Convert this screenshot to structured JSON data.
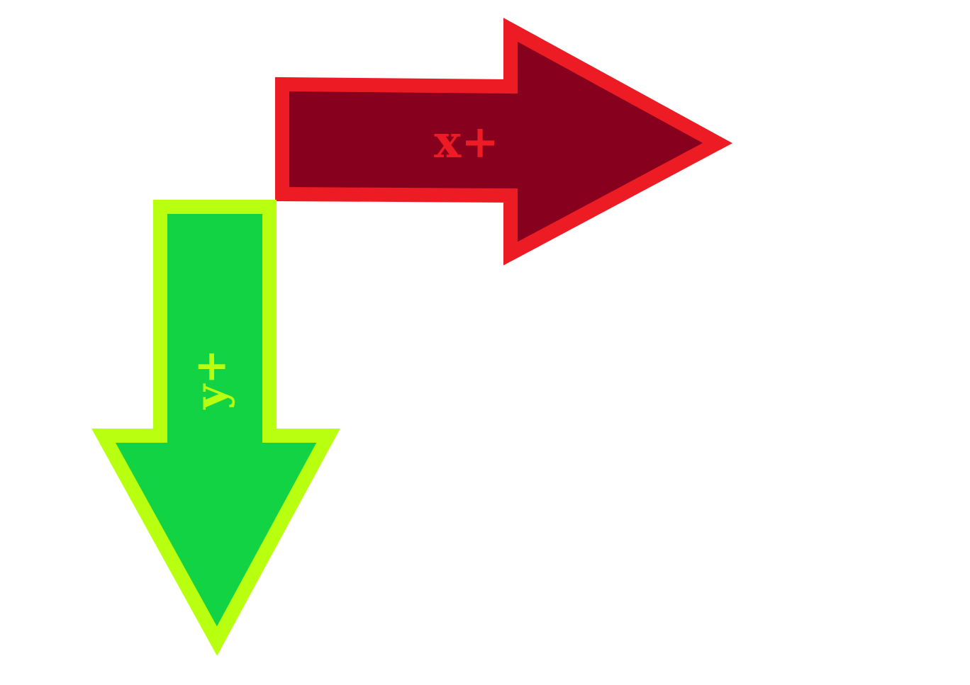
{
  "diagram": {
    "background_color": "#ffffff",
    "arrows": [
      {
        "id": "x-axis-arrow",
        "direction": "right",
        "label": "x+",
        "fill_color": "#87001d",
        "stroke_color": "#ed1c24",
        "label_color": "#ed1c24"
      },
      {
        "id": "y-axis-arrow",
        "direction": "down",
        "label": "y+",
        "fill_color": "#12d344",
        "stroke_color": "#b8ff10",
        "label_color": "#b8ff10"
      }
    ]
  }
}
